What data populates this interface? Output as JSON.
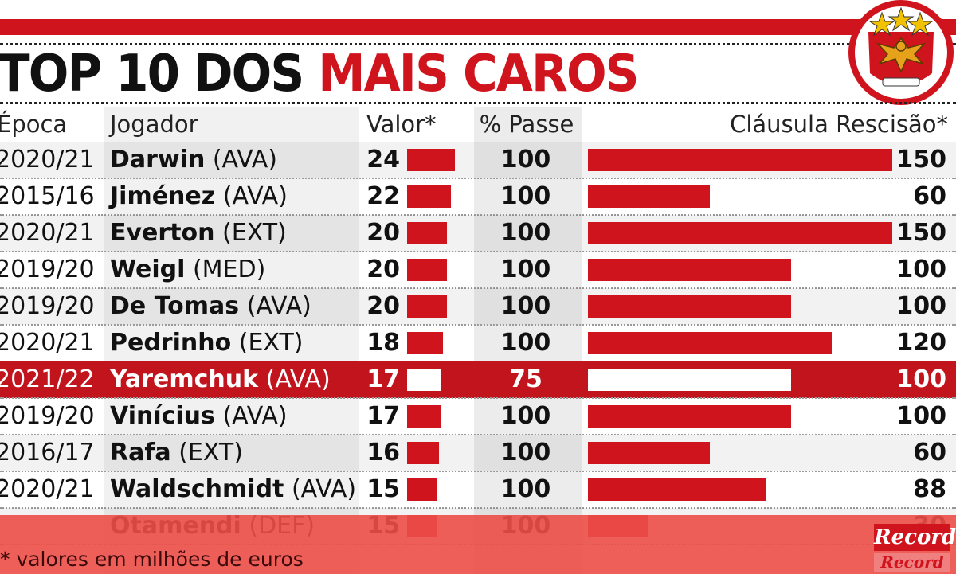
{
  "title": {
    "part1": "TOP 10 DOS",
    "part2": "MAIS CAROS"
  },
  "colors": {
    "accent": "#d0141e",
    "highlight_row": "#c1141d"
  },
  "chart_data": {
    "type": "table",
    "columns": [
      "Época",
      "Jogador",
      "Valor*",
      "% Passe",
      "Cláusula Rescisão*"
    ],
    "rows": [
      {
        "epoca": "2020/21",
        "nome": "Darwin",
        "posicao": "(AVA)",
        "valor": 24,
        "passe": 100,
        "clausula": 150
      },
      {
        "epoca": "2015/16",
        "nome": "Jiménez",
        "posicao": "(AVA)",
        "valor": 22,
        "passe": 100,
        "clausula": 60
      },
      {
        "epoca": "2020/21",
        "nome": "Everton",
        "posicao": "(EXT)",
        "valor": 20,
        "passe": 100,
        "clausula": 150
      },
      {
        "epoca": "2019/20",
        "nome": "Weigl",
        "posicao": "(MED)",
        "valor": 20,
        "passe": 100,
        "clausula": 100
      },
      {
        "epoca": "2019/20",
        "nome": "De Tomas",
        "posicao": "(AVA)",
        "valor": 20,
        "passe": 100,
        "clausula": 100
      },
      {
        "epoca": "2020/21",
        "nome": "Pedrinho",
        "posicao": "(EXT)",
        "valor": 18,
        "passe": 100,
        "clausula": 120
      },
      {
        "epoca": "2021/22",
        "nome": "Yaremchuk",
        "posicao": "(AVA)",
        "valor": 17,
        "passe": 75,
        "clausula": 100,
        "highlight": true
      },
      {
        "epoca": "2019/20",
        "nome": "Vinícius",
        "posicao": "(AVA)",
        "valor": 17,
        "passe": 100,
        "clausula": 100
      },
      {
        "epoca": "2016/17",
        "nome": "Rafa",
        "posicao": "(EXT)",
        "valor": 16,
        "passe": 100,
        "clausula": 60
      },
      {
        "epoca": "2020/21",
        "nome": "Waldschmidt",
        "posicao": "(AVA)",
        "valor": 15,
        "passe": 100,
        "clausula": 88
      },
      {
        "epoca": "",
        "nome": "Otamendi",
        "posicao": "(DEF)",
        "valor": 15,
        "passe": 100,
        "clausula": 30
      }
    ],
    "valor_max": 24,
    "clausula_max": 150
  },
  "footnote": "* valores em milhões de euros",
  "logo": {
    "text": "Record"
  }
}
